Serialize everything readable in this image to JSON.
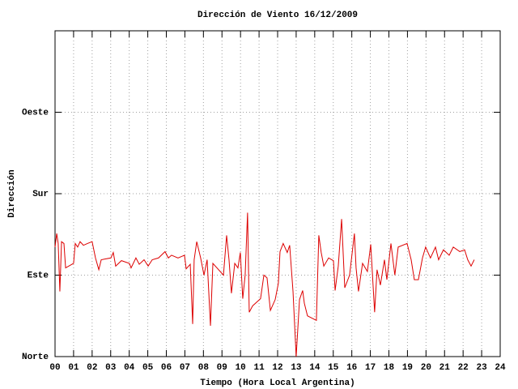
{
  "chart_data": {
    "type": "line",
    "title": "Dirección de Viento 16/12/2009",
    "xlabel": "Tiempo (Hora Local Argentina)",
    "ylabel": "Dirección",
    "xlim": [
      0,
      24
    ],
    "ylim": [
      0,
      360
    ],
    "xticks": [
      {
        "value": 0,
        "label": "00"
      },
      {
        "value": 1,
        "label": "01"
      },
      {
        "value": 2,
        "label": "02"
      },
      {
        "value": 3,
        "label": "03"
      },
      {
        "value": 4,
        "label": "04"
      },
      {
        "value": 5,
        "label": "05"
      },
      {
        "value": 6,
        "label": "06"
      },
      {
        "value": 7,
        "label": "07"
      },
      {
        "value": 8,
        "label": "08"
      },
      {
        "value": 9,
        "label": "09"
      },
      {
        "value": 10,
        "label": "10"
      },
      {
        "value": 11,
        "label": "11"
      },
      {
        "value": 12,
        "label": "12"
      },
      {
        "value": 13,
        "label": "13"
      },
      {
        "value": 14,
        "label": "14"
      },
      {
        "value": 15,
        "label": "15"
      },
      {
        "value": 16,
        "label": "16"
      },
      {
        "value": 17,
        "label": "17"
      },
      {
        "value": 18,
        "label": "18"
      },
      {
        "value": 19,
        "label": "19"
      },
      {
        "value": 20,
        "label": "20"
      },
      {
        "value": 21,
        "label": "21"
      },
      {
        "value": 22,
        "label": "22"
      },
      {
        "value": 23,
        "label": "23"
      },
      {
        "value": 24,
        "label": "24"
      }
    ],
    "yticks": [
      {
        "value": 0,
        "label": "Norte"
      },
      {
        "value": 90,
        "label": "Este"
      },
      {
        "value": 180,
        "label": "Sur"
      },
      {
        "value": 270,
        "label": "Oeste"
      }
    ],
    "grid": true,
    "series": [
      {
        "color": "#dd0000",
        "x": [
          0.0,
          0.09,
          0.17,
          0.26,
          0.35,
          0.48,
          0.57,
          1.0,
          1.09,
          1.22,
          1.35,
          1.53,
          1.75,
          2.0,
          2.18,
          2.36,
          2.49,
          3.01,
          3.14,
          3.27,
          3.58,
          4.01,
          4.1,
          4.36,
          4.54,
          4.8,
          5.02,
          5.24,
          5.58,
          5.93,
          6.11,
          6.28,
          6.63,
          6.98,
          7.07,
          7.29,
          7.42,
          7.5,
          7.64,
          7.85,
          8.03,
          8.2,
          8.38,
          8.51,
          8.73,
          9.08,
          9.25,
          9.38,
          9.51,
          9.69,
          9.86,
          9.99,
          10.12,
          10.25,
          10.38,
          10.47,
          10.65,
          11.08,
          11.26,
          11.43,
          11.61,
          11.87,
          12.04,
          12.13,
          12.3,
          12.52,
          12.65,
          12.83,
          13.0,
          13.09,
          13.18,
          13.35,
          13.44,
          13.61,
          14.09,
          14.22,
          14.35,
          14.49,
          14.75,
          15.01,
          15.1,
          15.27,
          15.45,
          15.62,
          15.88,
          16.14,
          16.23,
          16.36,
          16.58,
          16.84,
          17.02,
          17.23,
          17.36,
          17.54,
          17.76,
          17.89,
          18.11,
          18.32,
          18.5,
          18.98,
          19.2,
          19.37,
          19.59,
          19.81,
          19.98,
          20.24,
          20.51,
          20.68,
          20.94,
          21.25,
          21.47,
          21.82,
          22.08,
          22.25,
          22.43,
          22.6
        ],
        "values": [
          121,
          136,
          125,
          72,
          127,
          125,
          98,
          103,
          125,
          121,
          127,
          123,
          125,
          127,
          109,
          96,
          107,
          109,
          115,
          100,
          106,
          103,
          98,
          109,
          102,
          107,
          100,
          107,
          109,
          116,
          109,
          112,
          109,
          112,
          97,
          102,
          36,
          107,
          127,
          109,
          90,
          107,
          34,
          103,
          98,
          90,
          134,
          107,
          70,
          103,
          98,
          115,
          64,
          90,
          159,
          49,
          56,
          64,
          90,
          87,
          51,
          63,
          81,
          116,
          125,
          115,
          123,
          72,
          0,
          31,
          63,
          73,
          59,
          45,
          40,
          134,
          115,
          100,
          109,
          106,
          73,
          100,
          152,
          76,
          90,
          136,
          98,
          72,
          103,
          94,
          124,
          49,
          96,
          79,
          107,
          85,
          125,
          90,
          121,
          125,
          107,
          85,
          85,
          109,
          121,
          109,
          121,
          107,
          118,
          112,
          121,
          116,
          118,
          107,
          100,
          107
        ]
      }
    ]
  }
}
